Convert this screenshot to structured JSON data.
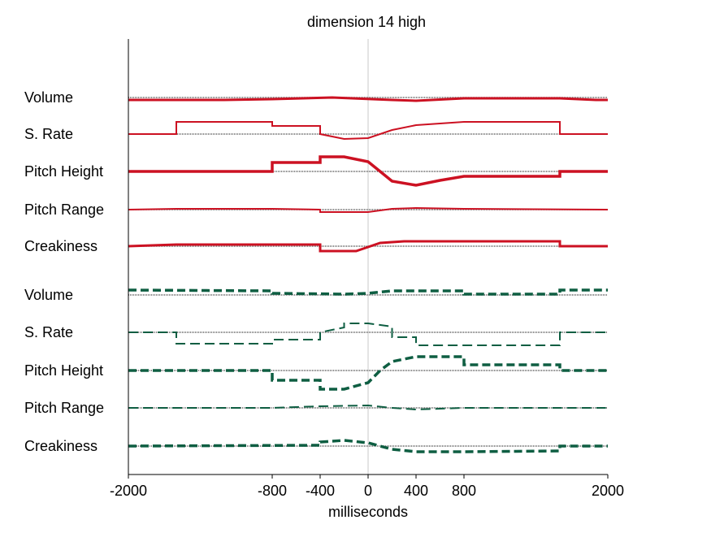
{
  "chart_data": {
    "type": "line",
    "title": "dimension 14 high",
    "xlabel": "milliseconds",
    "xlim": [
      -2000,
      2000
    ],
    "xticks": [
      -2000,
      -800,
      -400,
      0,
      400,
      800,
      2000
    ],
    "xtick_labels": [
      "-2000",
      "-800",
      "-400",
      "0",
      "400",
      "800",
      "2000"
    ],
    "reference_line_x": 0,
    "y_axis_ticks": false,
    "groups": [
      {
        "color": "#cc1122",
        "dash": "solid",
        "rows": [
          {
            "label": "Volume",
            "width": 3,
            "points": [
              [
                -2000,
                -0.3
              ],
              [
                -1200,
                -0.3
              ],
              [
                -800,
                -0.2
              ],
              [
                -300,
                0
              ],
              [
                200,
                -0.3
              ],
              [
                400,
                -0.4
              ],
              [
                800,
                -0.1
              ],
              [
                1600,
                -0.1
              ],
              [
                1900,
                -0.3
              ],
              [
                2000,
                -0.3
              ]
            ]
          },
          {
            "label": "S. Rate",
            "width": 2,
            "points": [
              [
                -2000,
                0
              ],
              [
                -1600,
                0
              ],
              [
                -1600,
                1.5
              ],
              [
                -800,
                1.5
              ],
              [
                -800,
                1.0
              ],
              [
                -400,
                1.0
              ],
              [
                -400,
                0
              ],
              [
                -200,
                -0.6
              ],
              [
                0,
                -0.5
              ],
              [
                200,
                0.5
              ],
              [
                400,
                1.1
              ],
              [
                800,
                1.5
              ],
              [
                1600,
                1.5
              ],
              [
                1600,
                0
              ],
              [
                2000,
                0
              ]
            ]
          },
          {
            "label": "Pitch Height",
            "width": 3.5,
            "points": [
              [
                -2000,
                0
              ],
              [
                -800,
                0
              ],
              [
                -800,
                1.1
              ],
              [
                -400,
                1.1
              ],
              [
                -400,
                1.8
              ],
              [
                -200,
                1.8
              ],
              [
                0,
                1.2
              ],
              [
                100,
                0
              ],
              [
                200,
                -1.2
              ],
              [
                400,
                -1.7
              ],
              [
                600,
                -1.1
              ],
              [
                800,
                -0.6
              ],
              [
                1600,
                -0.6
              ],
              [
                1600,
                0
              ],
              [
                2000,
                0
              ]
            ]
          },
          {
            "label": "Pitch Range",
            "width": 2,
            "points": [
              [
                -2000,
                0
              ],
              [
                -1600,
                0.1
              ],
              [
                -800,
                0.1
              ],
              [
                -400,
                0
              ],
              [
                -400,
                -0.3
              ],
              [
                0,
                -0.3
              ],
              [
                200,
                0.1
              ],
              [
                400,
                0.2
              ],
              [
                800,
                0.1
              ],
              [
                2000,
                0
              ]
            ]
          },
          {
            "label": "Creakiness",
            "width": 3,
            "points": [
              [
                -2000,
                0
              ],
              [
                -1600,
                0.2
              ],
              [
                -800,
                0.2
              ],
              [
                -400,
                0.2
              ],
              [
                -400,
                -0.6
              ],
              [
                -100,
                -0.6
              ],
              [
                100,
                0.4
              ],
              [
                300,
                0.6
              ],
              [
                800,
                0.6
              ],
              [
                1600,
                0.6
              ],
              [
                1600,
                0
              ],
              [
                2000,
                0
              ]
            ]
          }
        ]
      },
      {
        "color": "#0e5e42",
        "dash": "dashed",
        "rows": [
          {
            "label": "Volume",
            "width": 3.5,
            "points": [
              [
                -2000,
                0.6
              ],
              [
                -800,
                0.5
              ],
              [
                -800,
                0.2
              ],
              [
                -200,
                0.1
              ],
              [
                0,
                0.2
              ],
              [
                200,
                0.5
              ],
              [
                800,
                0.5
              ],
              [
                800,
                0.1
              ],
              [
                1600,
                0.1
              ],
              [
                1600,
                0.6
              ],
              [
                2000,
                0.6
              ]
            ]
          },
          {
            "label": "S. Rate",
            "width": 2,
            "points": [
              [
                -2000,
                0
              ],
              [
                -1600,
                0
              ],
              [
                -1600,
                -1.4
              ],
              [
                -800,
                -1.4
              ],
              [
                -800,
                -0.9
              ],
              [
                -400,
                -0.9
              ],
              [
                -400,
                0
              ],
              [
                -200,
                0.6
              ],
              [
                -200,
                1.1
              ],
              [
                0,
                1.1
              ],
              [
                200,
                0.7
              ],
              [
                200,
                -0.6
              ],
              [
                400,
                -0.6
              ],
              [
                400,
                -1.6
              ],
              [
                800,
                -1.6
              ],
              [
                1600,
                -1.6
              ],
              [
                1600,
                0
              ],
              [
                2000,
                0
              ]
            ]
          },
          {
            "label": "Pitch Height",
            "width": 3.5,
            "points": [
              [
                -2000,
                0
              ],
              [
                -800,
                0
              ],
              [
                -800,
                -1.2
              ],
              [
                -400,
                -1.2
              ],
              [
                -400,
                -2.3
              ],
              [
                -200,
                -2.3
              ],
              [
                0,
                -1.5
              ],
              [
                100,
                0
              ],
              [
                200,
                1.1
              ],
              [
                400,
                1.7
              ],
              [
                800,
                1.7
              ],
              [
                800,
                0.7
              ],
              [
                1600,
                0.7
              ],
              [
                1600,
                0
              ],
              [
                2000,
                0
              ]
            ]
          },
          {
            "label": "Pitch Range",
            "width": 2,
            "points": [
              [
                -2000,
                0
              ],
              [
                -800,
                0
              ],
              [
                -400,
                0.2
              ],
              [
                0,
                0.3
              ],
              [
                200,
                0
              ],
              [
                400,
                -0.2
              ],
              [
                800,
                0
              ],
              [
                2000,
                0
              ]
            ]
          },
          {
            "label": "Creakiness",
            "width": 3.5,
            "points": [
              [
                -2000,
                0
              ],
              [
                -400,
                0.1
              ],
              [
                -400,
                0.5
              ],
              [
                -200,
                0.7
              ],
              [
                0,
                0.4
              ],
              [
                200,
                -0.4
              ],
              [
                400,
                -0.7
              ],
              [
                800,
                -0.7
              ],
              [
                1600,
                -0.6
              ],
              [
                1600,
                0
              ],
              [
                2000,
                0
              ]
            ]
          }
        ]
      }
    ]
  }
}
